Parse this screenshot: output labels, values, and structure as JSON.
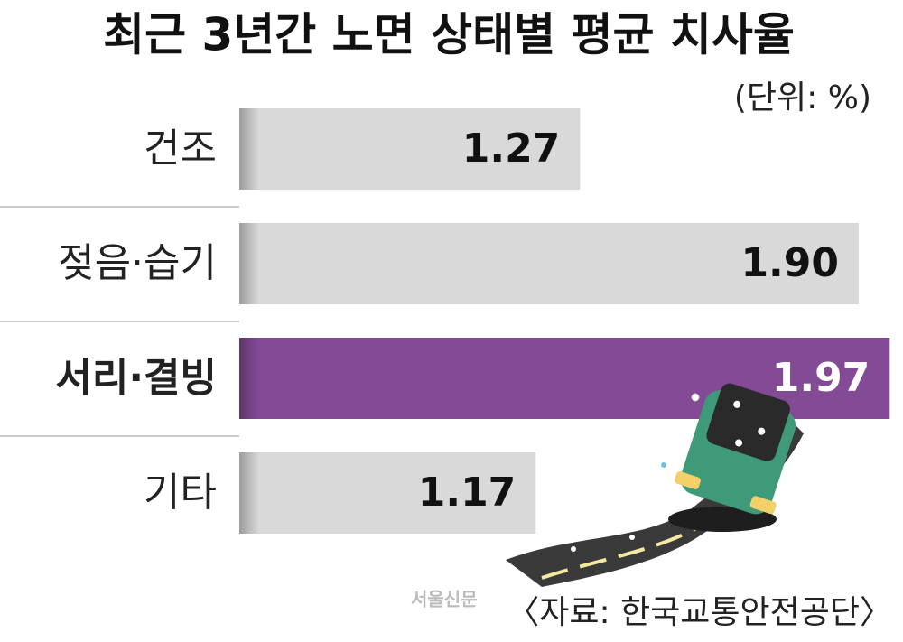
{
  "chart_data": {
    "type": "bar",
    "orientation": "horizontal",
    "title": "최근 3년간 노면 상태별 평균 치사율",
    "unit": "(단위: %)",
    "categories": [
      "건조",
      "젖음·습기",
      "서리·결빙",
      "기타"
    ],
    "values": [
      1.27,
      1.9,
      1.97,
      1.17
    ],
    "value_labels": [
      "1.27",
      "1.90",
      "1.97",
      "1.17"
    ],
    "color": "#d9d9d9",
    "highlight_color": "#834b96",
    "highlight_index": 2,
    "xlim": [
      0.5,
      2.0
    ],
    "source": "〈자료: 한국교통안전공단〉",
    "watermark": "서울신문"
  }
}
